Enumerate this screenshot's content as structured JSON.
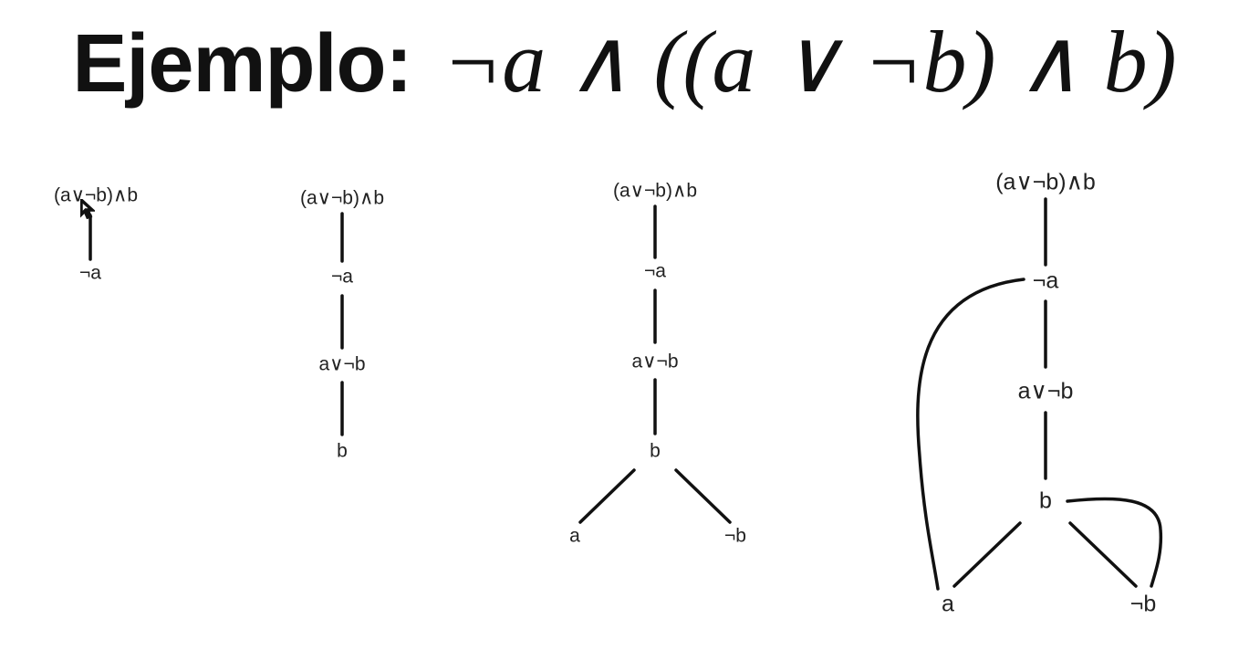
{
  "title": {
    "label": "Ejemplo:",
    "formula": "¬a ∧ ((a ∨ ¬b) ∧ b)"
  },
  "trees": [
    {
      "name": "tree-step-1",
      "nodes": [
        {
          "id": "root",
          "label": "(a∨¬b)∧b"
        },
        {
          "id": "not-a",
          "label": "¬a"
        }
      ]
    },
    {
      "name": "tree-step-2",
      "nodes": [
        {
          "id": "root",
          "label": "(a∨¬b)∧b"
        },
        {
          "id": "not-a",
          "label": "¬a"
        },
        {
          "id": "a-or-not-b",
          "label": "a∨¬b"
        },
        {
          "id": "b",
          "label": "b"
        }
      ]
    },
    {
      "name": "tree-step-3",
      "nodes": [
        {
          "id": "root",
          "label": "(a∨¬b)∧b"
        },
        {
          "id": "not-a",
          "label": "¬a"
        },
        {
          "id": "a-or-not-b",
          "label": "a∨¬b"
        },
        {
          "id": "b",
          "label": "b"
        },
        {
          "id": "a",
          "label": "a"
        },
        {
          "id": "not-b",
          "label": "¬b"
        }
      ]
    },
    {
      "name": "tree-step-4",
      "nodes": [
        {
          "id": "root",
          "label": "(a∨¬b)∧b"
        },
        {
          "id": "not-a",
          "label": "¬a"
        },
        {
          "id": "a-or-not-b",
          "label": "a∨¬b"
        },
        {
          "id": "b",
          "label": "b"
        },
        {
          "id": "a",
          "label": "a"
        },
        {
          "id": "not-b",
          "label": "¬b"
        }
      ]
    }
  ]
}
